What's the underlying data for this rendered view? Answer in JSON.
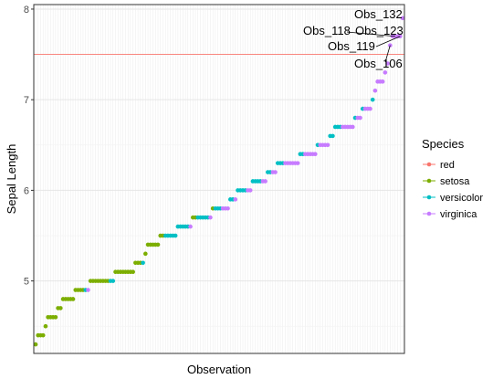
{
  "chart_data": {
    "type": "scatter",
    "title": "",
    "xlabel": "Observation",
    "ylabel": "Sepal Length",
    "ylim": [
      4.2,
      8.05
    ],
    "y_ticks": [
      5,
      6,
      7,
      8
    ],
    "x_tick_labels": "none",
    "grid": true,
    "legend_position": "right",
    "legend": {
      "title": "Species",
      "entries": [
        "red",
        "setosa",
        "versicolor",
        "virginica"
      ]
    },
    "colors": {
      "red": "#F8766D",
      "setosa": "#7CAE00",
      "versicolor": "#00BFC4",
      "virginica": "#C77CFF"
    },
    "reference_line": {
      "y": 7.5,
      "color": "red"
    },
    "series": [
      {
        "name": "setosa",
        "runs": [
          [
            4.3,
            1
          ],
          [
            4.4,
            3
          ],
          [
            4.5,
            1
          ],
          [
            4.6,
            4
          ],
          [
            4.7,
            2
          ],
          [
            4.8,
            5
          ],
          [
            4.9,
            4
          ],
          [
            5.0,
            8
          ],
          [
            5.1,
            8
          ],
          [
            5.2,
            3
          ],
          [
            5.3,
            1
          ],
          [
            5.4,
            5
          ],
          [
            5.5,
            2
          ],
          [
            5.7,
            2
          ],
          [
            5.8,
            1
          ]
        ]
      },
      {
        "name": "versicolor",
        "runs": [
          [
            4.9,
            1
          ],
          [
            5.0,
            2
          ],
          [
            5.2,
            1
          ],
          [
            5.5,
            5
          ],
          [
            5.6,
            5
          ],
          [
            5.7,
            5
          ],
          [
            5.8,
            3
          ],
          [
            5.9,
            2
          ],
          [
            6.0,
            4
          ],
          [
            6.1,
            4
          ],
          [
            6.2,
            2
          ],
          [
            6.3,
            3
          ],
          [
            6.4,
            2
          ],
          [
            6.5,
            1
          ],
          [
            6.6,
            2
          ],
          [
            6.7,
            3
          ],
          [
            6.8,
            1
          ],
          [
            6.9,
            1
          ],
          [
            7.0,
            1
          ]
        ]
      },
      {
        "name": "virginica",
        "runs": [
          [
            4.9,
            1
          ],
          [
            5.6,
            1
          ],
          [
            5.7,
            1
          ],
          [
            5.8,
            3
          ],
          [
            5.9,
            1
          ],
          [
            6.0,
            2
          ],
          [
            6.1,
            2
          ],
          [
            6.2,
            2
          ],
          [
            6.3,
            6
          ],
          [
            6.4,
            5
          ],
          [
            6.5,
            4
          ],
          [
            6.7,
            5
          ],
          [
            6.8,
            2
          ],
          [
            6.9,
            3
          ],
          [
            7.1,
            1
          ],
          [
            7.2,
            3
          ],
          [
            7.3,
            1
          ],
          [
            7.4,
            1
          ],
          [
            7.6,
            1
          ],
          [
            7.7,
            4
          ],
          [
            7.9,
            1
          ]
        ]
      }
    ],
    "annotations": [
      {
        "text": "Obs_132",
        "y": 7.9
      },
      {
        "text": "Obs_118",
        "y": 7.7
      },
      {
        "text": "Obs_123",
        "y": 7.7
      },
      {
        "text": "Obs_119",
        "y": 7.7
      },
      {
        "text": "Obs_106",
        "y": 7.6
      }
    ]
  }
}
